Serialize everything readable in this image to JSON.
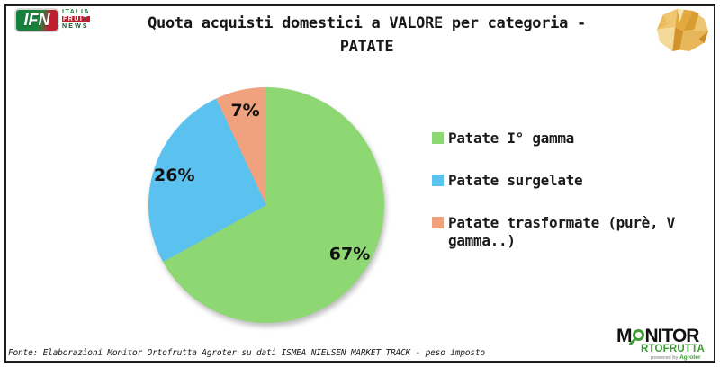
{
  "header": {
    "logo_ifn": {
      "acronym": "IFN",
      "line1": "ITALIA",
      "line2": "FRUIT",
      "line3": "NEWS"
    },
    "title_line1": "Quota acquisti domestici a VALORE per categoria -",
    "title_line2": "PATATE"
  },
  "chart_data": {
    "type": "pie",
    "title": "Quota acquisti domestici a VALORE per categoria - PATATE",
    "unit": "percent",
    "direction": "clockwise",
    "start_angle_deg": 0,
    "legend_position": "right",
    "labels": "inside",
    "slices": [
      {
        "label": "Patate I° gamma",
        "value": 67,
        "display": "67%",
        "color": "#8DD873"
      },
      {
        "label": "Patate surgelate",
        "value": 26,
        "display": "26%",
        "color": "#5BC2F0"
      },
      {
        "label": "Patate trasformate (purè, V gamma..)",
        "value": 7,
        "display": "7%",
        "color": "#F0A17E"
      }
    ]
  },
  "footer": {
    "source": "Fonte: Elaborazioni Monitor Ortofrutta Agroter su dati ISMEA NIELSEN MARKET TRACK - peso imposto",
    "logo_monitor": {
      "part1": "M",
      "part2": "NITOR",
      "part3": "RTOFRUTTA",
      "powered_prefix": "powered by",
      "powered_brand": "Agroter"
    }
  },
  "colors": {
    "slice_green": "#8DD873",
    "slice_blue": "#5BC2F0",
    "slice_orange": "#F0A17E",
    "brand_green": "#3E9C35",
    "ifn_green": "#17813C",
    "ifn_red": "#BF1E2E",
    "text": "#1A1A1A"
  }
}
